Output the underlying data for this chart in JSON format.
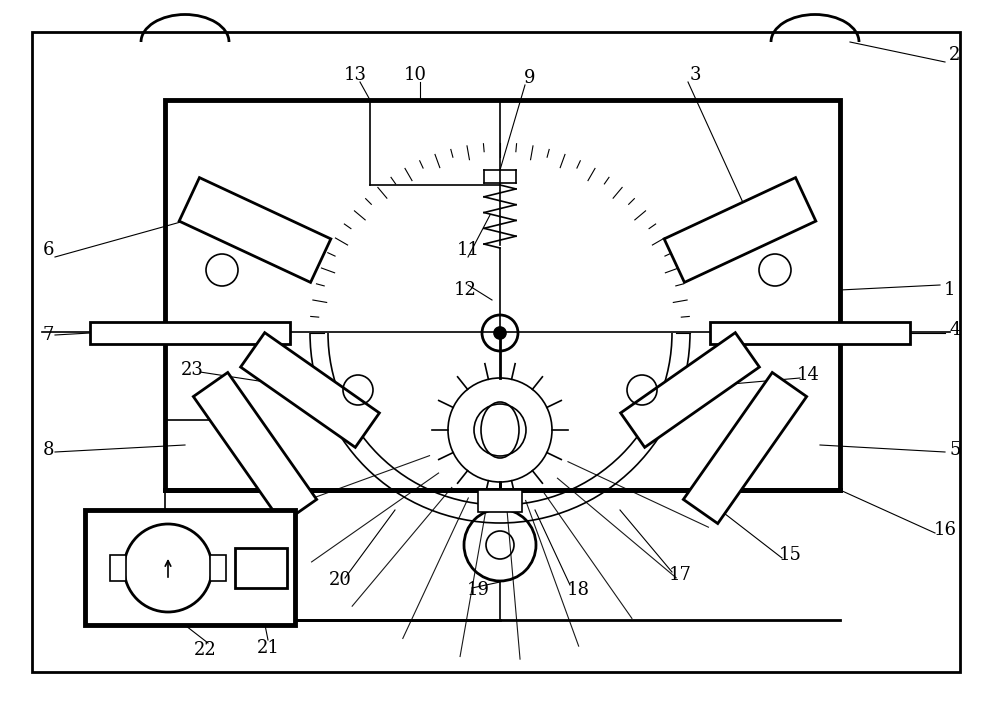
{
  "bg_color": "#ffffff",
  "line_color": "#000000",
  "figsize": [
    10.0,
    7.03
  ],
  "dpi": 100
}
